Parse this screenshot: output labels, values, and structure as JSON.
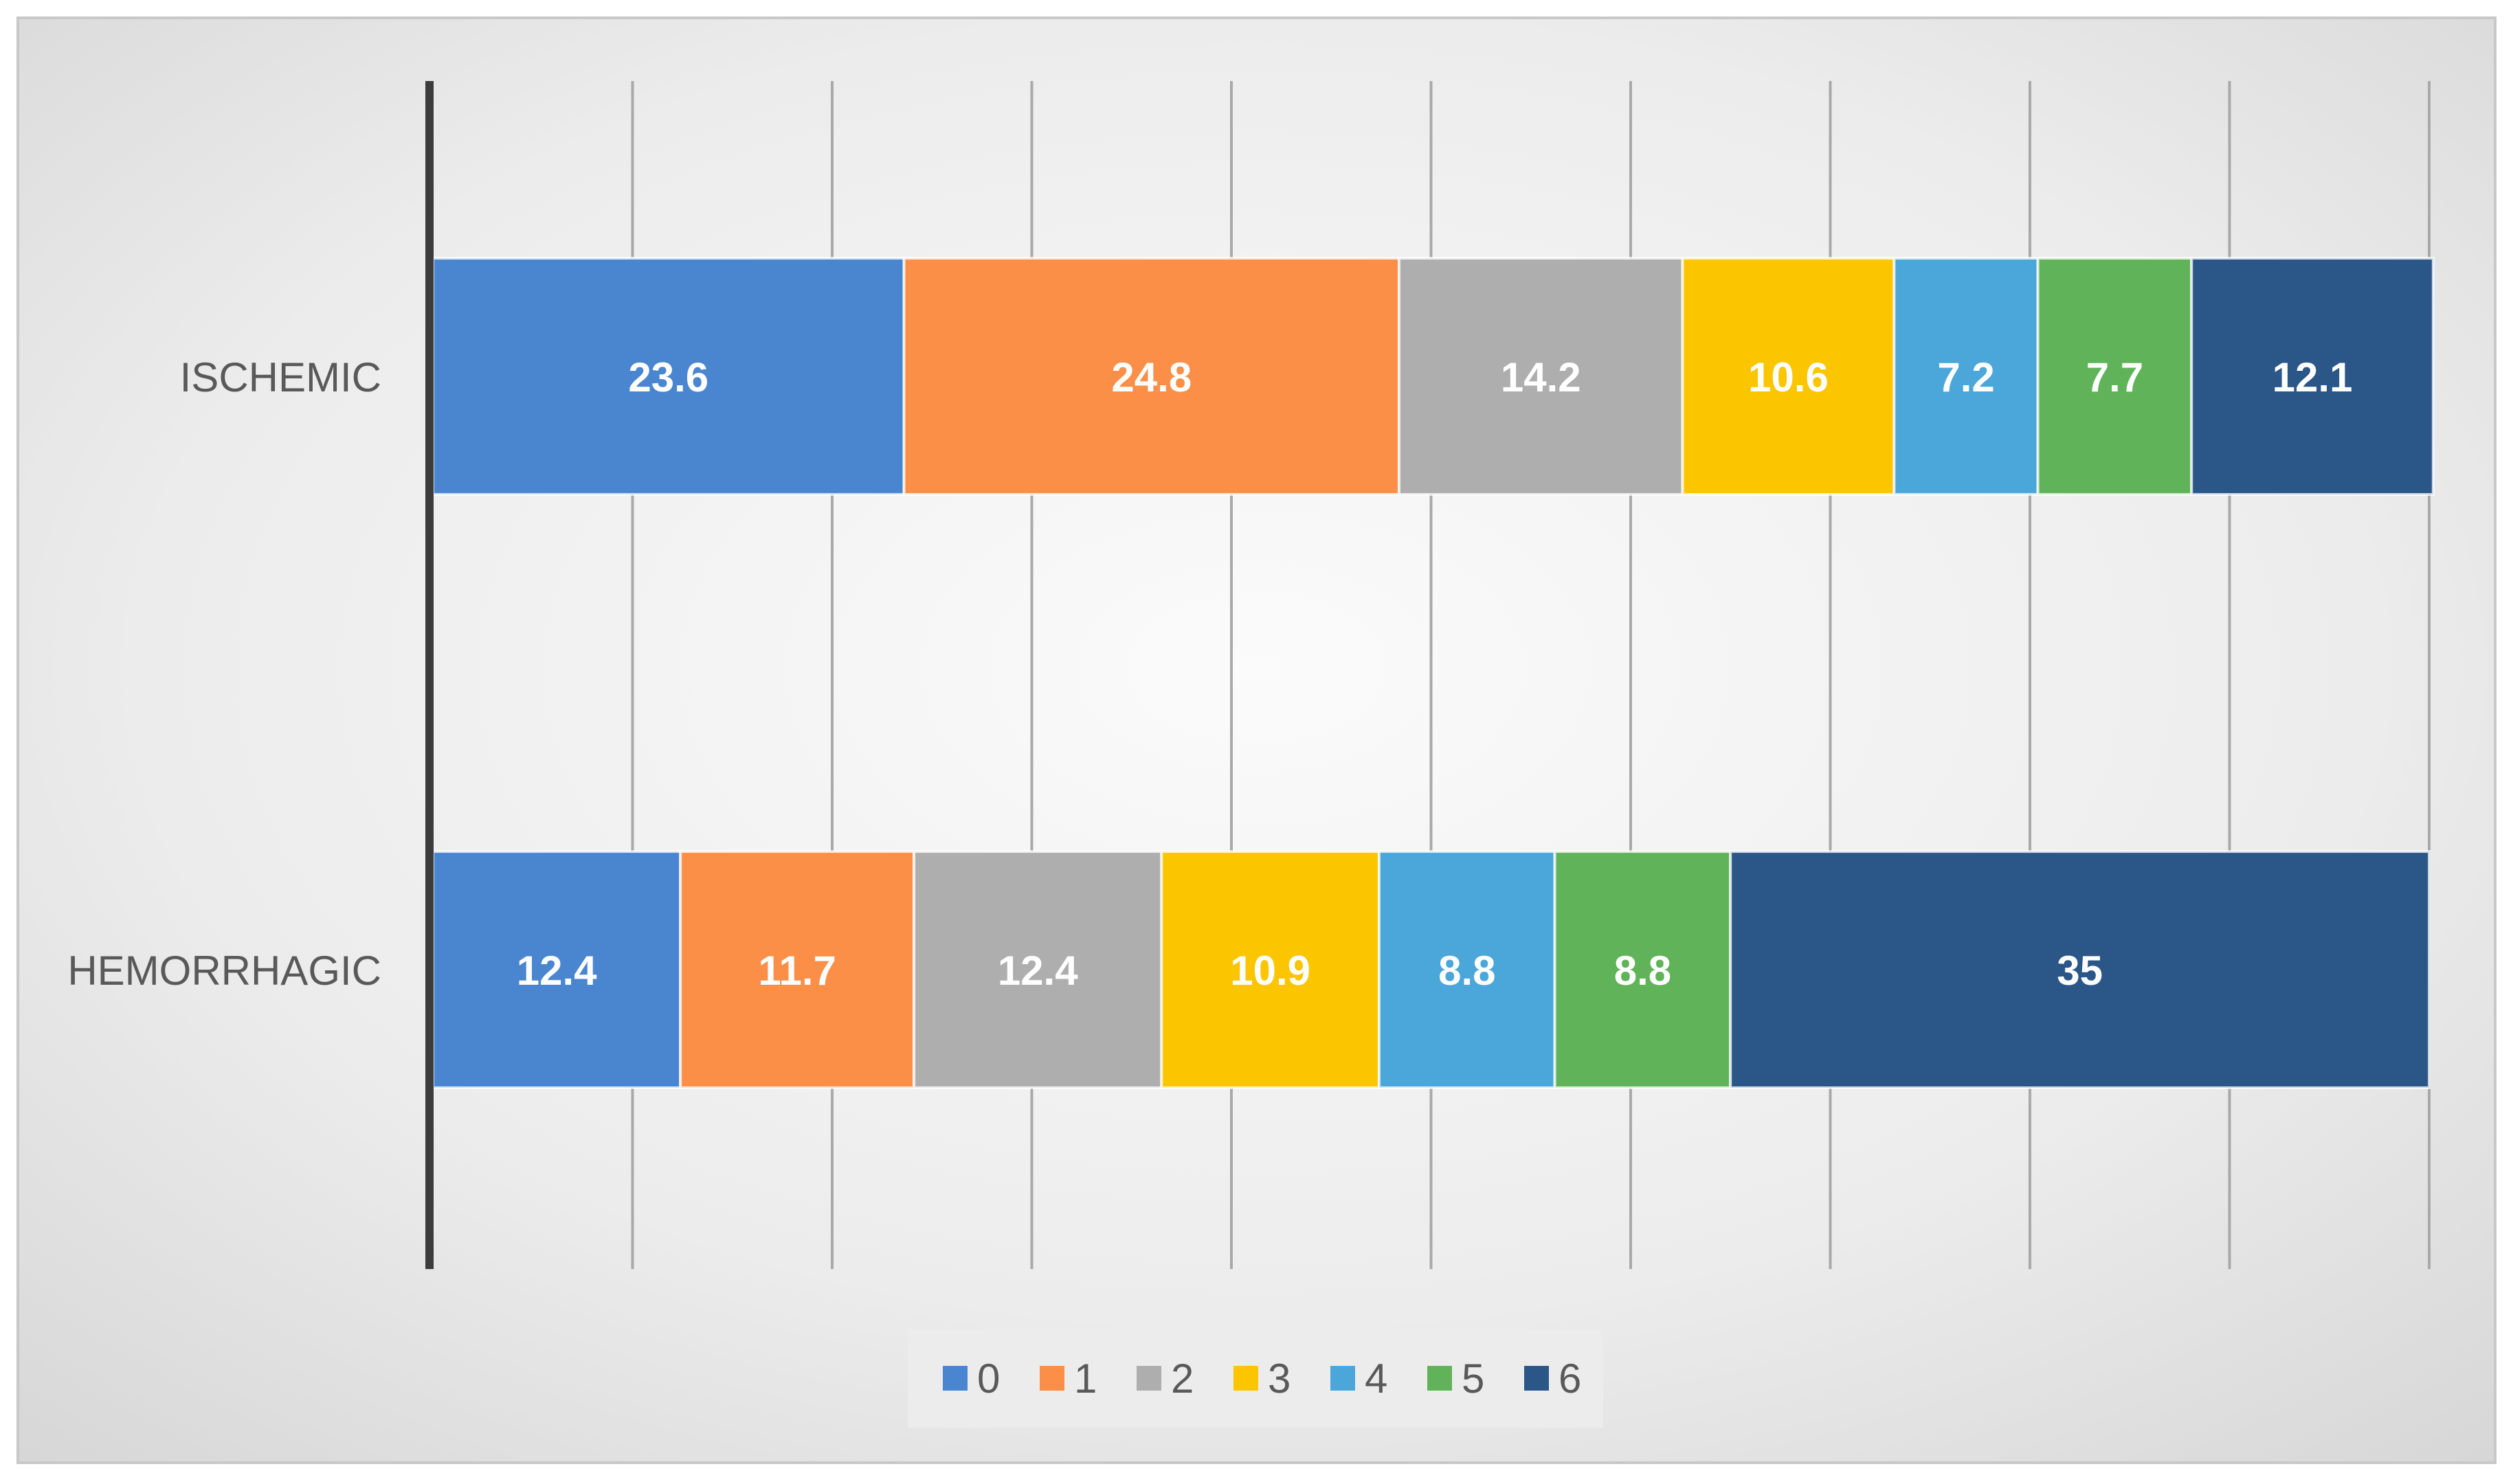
{
  "chart_data": {
    "type": "bar",
    "orientation": "horizontal",
    "stacked": true,
    "categories": [
      "ISCHEMIC",
      "HEMORRHAGIC"
    ],
    "series": [
      {
        "name": "0",
        "color": "#4a86d0",
        "values": [
          23.6,
          12.4
        ]
      },
      {
        "name": "1",
        "color": "#fb8f48",
        "values": [
          24.8,
          11.7
        ]
      },
      {
        "name": "2",
        "color": "#aeaeae",
        "values": [
          14.2,
          12.4
        ]
      },
      {
        "name": "3",
        "color": "#fbc600",
        "values": [
          10.6,
          10.9
        ]
      },
      {
        "name": "4",
        "color": "#4ba6da",
        "values": [
          7.2,
          8.8
        ]
      },
      {
        "name": "5",
        "color": "#60b358",
        "values": [
          7.7,
          8.8
        ]
      },
      {
        "name": "6",
        "color": "#2a5688",
        "values": [
          12.1,
          35
        ]
      }
    ],
    "data_labels": [
      [
        "23.6",
        "24.8",
        "14.2",
        "10.6",
        "7.2",
        "7.7",
        "12.1"
      ],
      [
        "12.4",
        "11.7",
        "12.4",
        "10.9",
        "8.8",
        "8.8",
        "35"
      ]
    ],
    "xlim": [
      0,
      100
    ],
    "grid": true,
    "legend": "bottom",
    "title": "",
    "xlabel": "",
    "ylabel": ""
  }
}
